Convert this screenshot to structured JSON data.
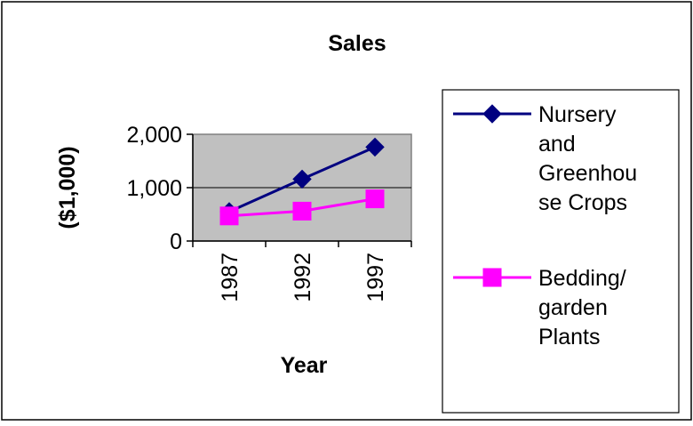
{
  "chart_data": {
    "type": "line",
    "title": "Sales",
    "xlabel": "Year",
    "ylabel": "($1,000)",
    "categories": [
      "1987",
      "1992",
      "1997"
    ],
    "ylim": [
      0,
      2000
    ],
    "yticks": [
      0,
      1000,
      2000
    ],
    "ytick_labels": [
      "0",
      "1,000",
      "2,000"
    ],
    "grid": true,
    "legend_position": "right",
    "plot_background": "#c0c0c0",
    "series": [
      {
        "name": "Nursery and Greenhouse Crops",
        "name_lines": [
          "Nursery",
          "and",
          "Greenhou",
          "se Crops"
        ],
        "values": [
          550,
          1160,
          1760
        ],
        "color": "#000080",
        "marker": "diamond"
      },
      {
        "name": "Bedding/ garden Plants",
        "name_lines": [
          "Bedding/",
          "garden",
          "Plants"
        ],
        "values": [
          470,
          560,
          790
        ],
        "color": "#ff00ff",
        "marker": "square"
      }
    ]
  }
}
